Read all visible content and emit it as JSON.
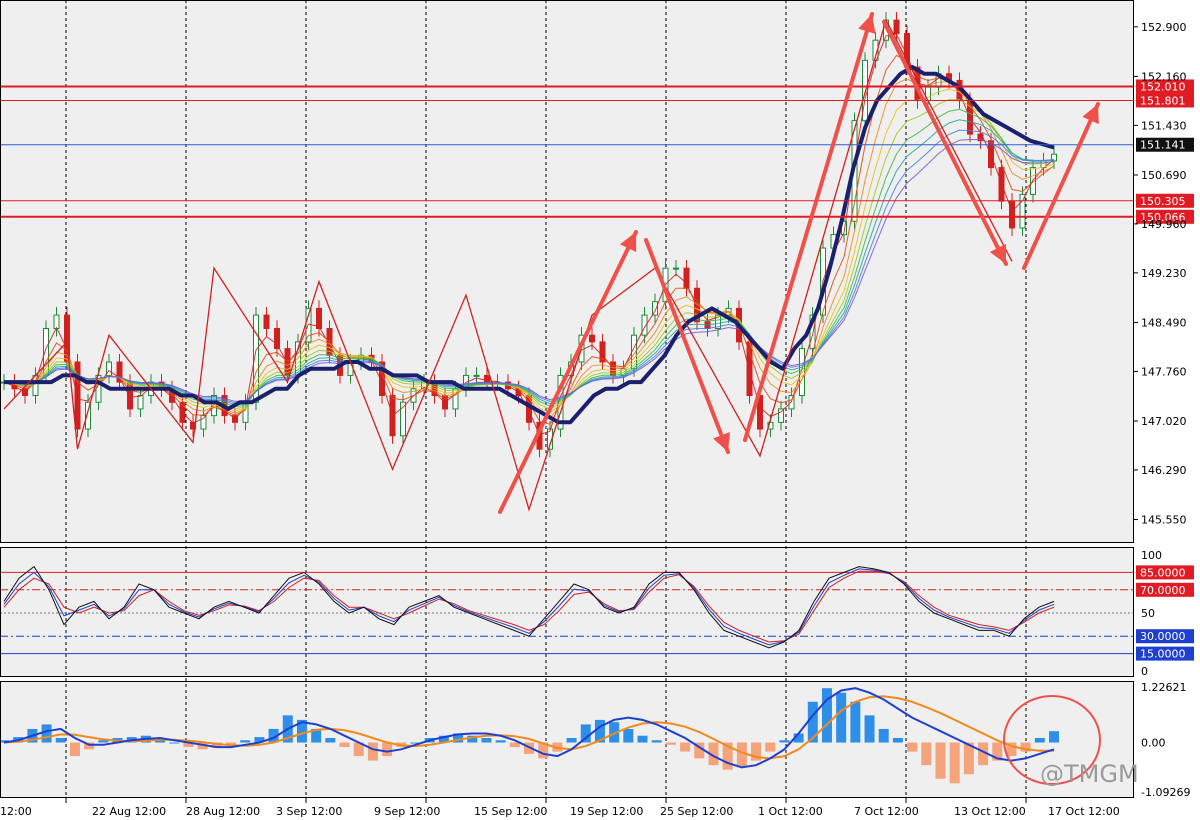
{
  "chart_data": [
    {
      "type": "line",
      "pane": "price",
      "title": "",
      "ylim": [
        145.2,
        153.3
      ],
      "y_ticks": [
        "152.900",
        "152.160",
        "151.430",
        "150.690",
        "149.960",
        "149.230",
        "148.490",
        "147.760",
        "147.020",
        "146.290",
        "145.550"
      ],
      "x_ticks": [
        "12:00",
        "22 Aug 12:00",
        "28 Aug 12:00",
        "3 Sep 12:00",
        "9 Sep 12:00",
        "15 Sep 12:00",
        "19 Sep 12:00",
        "25 Sep 12:00",
        "1 Oct 12:00",
        "7 Oct 12:00",
        "13 Oct 12:00",
        "17 Oct 12:00"
      ],
      "price_path": [
        147.6,
        147.5,
        147.4,
        147.7,
        148.4,
        148.6,
        147.9,
        146.9,
        147.3,
        147.7,
        147.9,
        147.6,
        147.2,
        147.4,
        147.6,
        147.5,
        147.3,
        147.0,
        146.9,
        147.1,
        147.4,
        147.1,
        147.0,
        147.3,
        148.6,
        148.4,
        148.1,
        147.7,
        148.2,
        148.7,
        148.4,
        148.0,
        147.7,
        147.9,
        148.0,
        147.9,
        147.4,
        146.8,
        147.3,
        147.5,
        147.6,
        147.4,
        147.2,
        147.5,
        147.7,
        147.7,
        147.6,
        147.6,
        147.5,
        147.4,
        147.0,
        146.6,
        146.9,
        147.7,
        147.9,
        148.3,
        148.2,
        147.9,
        147.7,
        147.8,
        148.3,
        148.6,
        148.8,
        149.3,
        149.3,
        149.0,
        148.5,
        148.4,
        148.6,
        148.7,
        148.2,
        147.4,
        146.9,
        147.0,
        147.2,
        147.4,
        148.1,
        148.6,
        149.6,
        149.8,
        150.0,
        151.5,
        152.4,
        152.7,
        153.0,
        152.8,
        152.3,
        151.8,
        152.0,
        152.2,
        152.1,
        151.8,
        151.3,
        151.2,
        150.8,
        150.3,
        149.9,
        150.4,
        150.8,
        150.9,
        151.0
      ],
      "ma_slow": [
        147.6,
        147.6,
        147.6,
        147.6,
        147.6,
        147.7,
        147.7,
        147.6,
        147.6,
        147.5,
        147.5,
        147.5,
        147.5,
        147.5,
        147.5,
        147.4,
        147.4,
        147.3,
        147.3,
        147.2,
        147.3,
        147.3,
        147.4,
        147.5,
        147.5,
        147.7,
        147.8,
        147.8,
        147.8,
        147.9,
        147.9,
        147.8,
        147.8,
        147.7,
        147.7,
        147.7,
        147.6,
        147.6,
        147.6,
        147.5,
        147.5,
        147.5,
        147.5,
        147.4,
        147.3,
        147.2,
        147.1,
        147.0,
        147.0,
        147.2,
        147.4,
        147.5,
        147.5,
        147.6,
        147.6,
        147.8,
        148.0,
        148.3,
        148.5,
        148.6,
        148.7,
        148.6,
        148.5,
        148.3,
        148.1,
        147.9,
        147.8,
        148.1,
        148.3,
        148.7,
        149.3,
        150.0,
        150.8,
        151.4,
        151.8,
        152.0,
        152.2,
        152.3,
        152.2,
        152.2,
        152.1,
        152.0,
        151.8,
        151.6,
        151.5,
        151.4,
        151.3,
        151.2,
        151.15,
        151.1
      ],
      "ma_fast": [
        147.5,
        147.6,
        147.8,
        148.0,
        147.6,
        147.3,
        147.5,
        147.6,
        147.6,
        147.3,
        147.2,
        147.1,
        147.2,
        147.5,
        147.7,
        147.9,
        148.0,
        148.0,
        147.8,
        147.7,
        147.6,
        147.6,
        147.5,
        147.4,
        147.2,
        147.2,
        147.4,
        147.6,
        147.8,
        147.9,
        147.8,
        147.9,
        148.1,
        148.5,
        148.8,
        149.0,
        148.9,
        148.6,
        148.2,
        147.8,
        147.5,
        147.4,
        147.4,
        147.7,
        148.2,
        149.2,
        150.5,
        151.6,
        152.3,
        152.7,
        152.6,
        152.4,
        152.2,
        152.0,
        151.7,
        151.4,
        151.1,
        150.8,
        150.6,
        150.7,
        150.9
      ],
      "horizontal_levels": [
        {
          "label": "152.010",
          "value": 152.01,
          "color": "#e01b24",
          "tagged": true
        },
        {
          "label": "151.801",
          "value": 151.801,
          "color": "#e01b24",
          "tagged": true
        },
        {
          "label": "151.141",
          "value": 151.141,
          "color": "#2f5fd0",
          "tagged": true
        },
        {
          "label": "150.305",
          "value": 150.305,
          "color": "#e01b24",
          "tagged": true
        },
        {
          "label": "150.066",
          "value": 150.066,
          "color": "#e01b24",
          "tagged": true
        }
      ]
    },
    {
      "type": "line",
      "pane": "stochastic",
      "title": "",
      "ylim": [
        0,
        100
      ],
      "y_ticks": [
        "100",
        "50",
        "0"
      ],
      "levels": [
        {
          "label": "85.0000",
          "value": 85,
          "color": "#e01b24",
          "style": "solid"
        },
        {
          "label": "70.0000",
          "value": 70,
          "color": "#e01b24",
          "style": "dashdot"
        },
        {
          "label": "30.0000",
          "value": 30,
          "color": "#1f3fd0",
          "style": "dashdot"
        },
        {
          "label": "15.0000",
          "value": 15,
          "color": "#1f3fd0",
          "style": "solid"
        }
      ],
      "main": [
        60,
        80,
        90,
        70,
        40,
        55,
        60,
        45,
        55,
        75,
        70,
        55,
        50,
        45,
        55,
        60,
        55,
        50,
        65,
        80,
        85,
        75,
        60,
        50,
        55,
        45,
        40,
        55,
        60,
        65,
        55,
        50,
        45,
        40,
        35,
        30,
        45,
        60,
        75,
        70,
        55,
        50,
        55,
        75,
        85,
        85,
        70,
        50,
        35,
        30,
        25,
        20,
        25,
        35,
        60,
        80,
        85,
        90,
        88,
        85,
        75,
        60,
        50,
        45,
        40,
        35,
        35,
        30,
        45,
        55,
        60
      ],
      "signal": [
        55,
        70,
        80,
        75,
        55,
        50,
        55,
        50,
        52,
        65,
        70,
        60,
        52,
        48,
        52,
        57,
        56,
        52,
        60,
        72,
        80,
        78,
        65,
        55,
        55,
        50,
        45,
        50,
        56,
        62,
        58,
        52,
        48,
        44,
        40,
        35,
        40,
        52,
        66,
        68,
        58,
        52,
        53,
        68,
        80,
        83,
        73,
        56,
        42,
        35,
        30,
        25,
        26,
        32,
        52,
        72,
        80,
        86,
        86,
        84,
        77,
        65,
        55,
        48,
        44,
        40,
        38,
        35,
        42,
        50,
        55
      ]
    },
    {
      "type": "bar",
      "pane": "macd",
      "title": "",
      "ylim": [
        -1.09269,
        1.22621
      ],
      "y_ticks": [
        "1.22621",
        "0.00",
        "-1.09269"
      ],
      "histogram": [
        0.05,
        0.12,
        0.3,
        0.4,
        0.1,
        -0.3,
        -0.15,
        0.05,
        0.1,
        0.12,
        0.15,
        0.1,
        0.0,
        -0.1,
        -0.15,
        -0.12,
        -0.05,
        0.05,
        0.12,
        0.3,
        0.6,
        0.5,
        0.3,
        0.1,
        -0.1,
        -0.3,
        -0.4,
        -0.3,
        -0.1,
        0.0,
        0.1,
        0.15,
        0.2,
        0.15,
        0.1,
        0.05,
        -0.1,
        -0.25,
        -0.35,
        -0.2,
        0.1,
        0.4,
        0.5,
        0.45,
        0.3,
        0.15,
        0.05,
        -0.05,
        -0.2,
        -0.35,
        -0.5,
        -0.6,
        -0.55,
        -0.4,
        -0.2,
        0.05,
        0.2,
        0.9,
        1.2,
        1.1,
        0.9,
        0.6,
        0.3,
        0.1,
        -0.2,
        -0.5,
        -0.8,
        -0.9,
        -0.7,
        -0.5,
        -0.4,
        -0.3,
        -0.2,
        0.1,
        0.25
      ],
      "macd_line": [
        0.0,
        0.05,
        0.15,
        0.25,
        0.3,
        0.1,
        -0.05,
        -0.05,
        0.0,
        0.05,
        0.08,
        0.1,
        0.05,
        0.0,
        -0.05,
        -0.1,
        -0.1,
        -0.05,
        0.0,
        0.1,
        0.3,
        0.45,
        0.4,
        0.3,
        0.15,
        0.0,
        -0.15,
        -0.2,
        -0.15,
        -0.05,
        0.05,
        0.12,
        0.18,
        0.2,
        0.2,
        0.15,
        0.05,
        -0.1,
        -0.25,
        -0.3,
        -0.15,
        0.1,
        0.35,
        0.5,
        0.55,
        0.5,
        0.4,
        0.25,
        0.1,
        -0.1,
        -0.3,
        -0.45,
        -0.55,
        -0.5,
        -0.35,
        -0.15,
        0.2,
        0.6,
        0.95,
        1.15,
        1.2,
        1.1,
        0.95,
        0.75,
        0.55,
        0.4,
        0.25,
        0.1,
        -0.05,
        -0.2,
        -0.35,
        -0.4,
        -0.35,
        -0.25,
        -0.15
      ],
      "signal_line": [
        0.0,
        0.02,
        0.06,
        0.12,
        0.18,
        0.17,
        0.12,
        0.07,
        0.04,
        0.03,
        0.04,
        0.06,
        0.06,
        0.04,
        0.01,
        -0.03,
        -0.06,
        -0.07,
        -0.05,
        0.0,
        0.1,
        0.2,
        0.28,
        0.3,
        0.27,
        0.2,
        0.1,
        0.0,
        -0.06,
        -0.08,
        -0.05,
        0.0,
        0.06,
        0.11,
        0.15,
        0.16,
        0.14,
        0.08,
        -0.02,
        -0.12,
        -0.15,
        -0.08,
        0.05,
        0.2,
        0.33,
        0.42,
        0.45,
        0.42,
        0.35,
        0.23,
        0.08,
        -0.08,
        -0.22,
        -0.32,
        -0.35,
        -0.3,
        -0.15,
        0.1,
        0.4,
        0.7,
        0.9,
        1.0,
        1.02,
        0.98,
        0.9,
        0.78,
        0.65,
        0.5,
        0.35,
        0.2,
        0.05,
        -0.08,
        -0.15,
        -0.18,
        -0.18
      ]
    }
  ],
  "watermark": "@TMGM",
  "colors": {
    "background": "#efefef",
    "grid": "#000000",
    "bull": "#1b8a3a",
    "bear": "#d02020",
    "ma_slow": "#1a1f6e",
    "stoch_main": "#111111",
    "stoch_signal": "#1f3fd0",
    "stoch_signal2": "#d02020",
    "macd_pos": "#2f8fe8",
    "macd_neg": "#f4a37a",
    "macd_line": "#1f3fd0",
    "signal_line": "#f08a1c",
    "arrow": "#f0504a",
    "circle": "#f0504a"
  },
  "icons": [
    "up-arrow",
    "down-arrow",
    "circle-annotation"
  ]
}
